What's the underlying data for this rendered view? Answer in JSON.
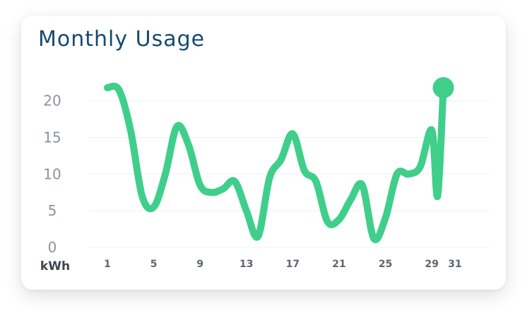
{
  "colors": {
    "title": "#174a6e",
    "line": "#3fcf8a",
    "grid": "#eef0f3",
    "ytick": "#8c939d",
    "xtick": "#5d6670"
  },
  "card": {
    "title": "Monthly Usage"
  },
  "chart_data": {
    "type": "line",
    "title": "Monthly Usage",
    "xlabel": "",
    "ylabel": "kWh",
    "unit_label": "kWh",
    "xlim": [
      1,
      31
    ],
    "ylim": [
      0,
      22
    ],
    "x_ticks": [
      1,
      5,
      9,
      13,
      17,
      21,
      25,
      29,
      31
    ],
    "y_ticks": [
      0,
      5,
      10,
      15,
      20
    ],
    "grid": true,
    "legend": false,
    "series": [
      {
        "x": [
          1,
          2,
          3,
          4,
          5,
          6,
          7,
          8,
          9,
          10,
          11,
          12,
          13,
          14,
          15,
          16,
          17,
          18,
          19,
          20,
          21,
          22,
          23,
          24,
          25,
          26,
          27,
          28,
          29,
          29.5,
          30
        ],
        "values": [
          21.8,
          21.5,
          16,
          7,
          5.5,
          10,
          16.5,
          14,
          8.5,
          7.5,
          8,
          9,
          5,
          1.5,
          9.5,
          12,
          15.5,
          10.5,
          9,
          3.5,
          3.8,
          6.5,
          8.5,
          1.2,
          4,
          10,
          10,
          11,
          16,
          7,
          21.8
        ]
      }
    ]
  }
}
